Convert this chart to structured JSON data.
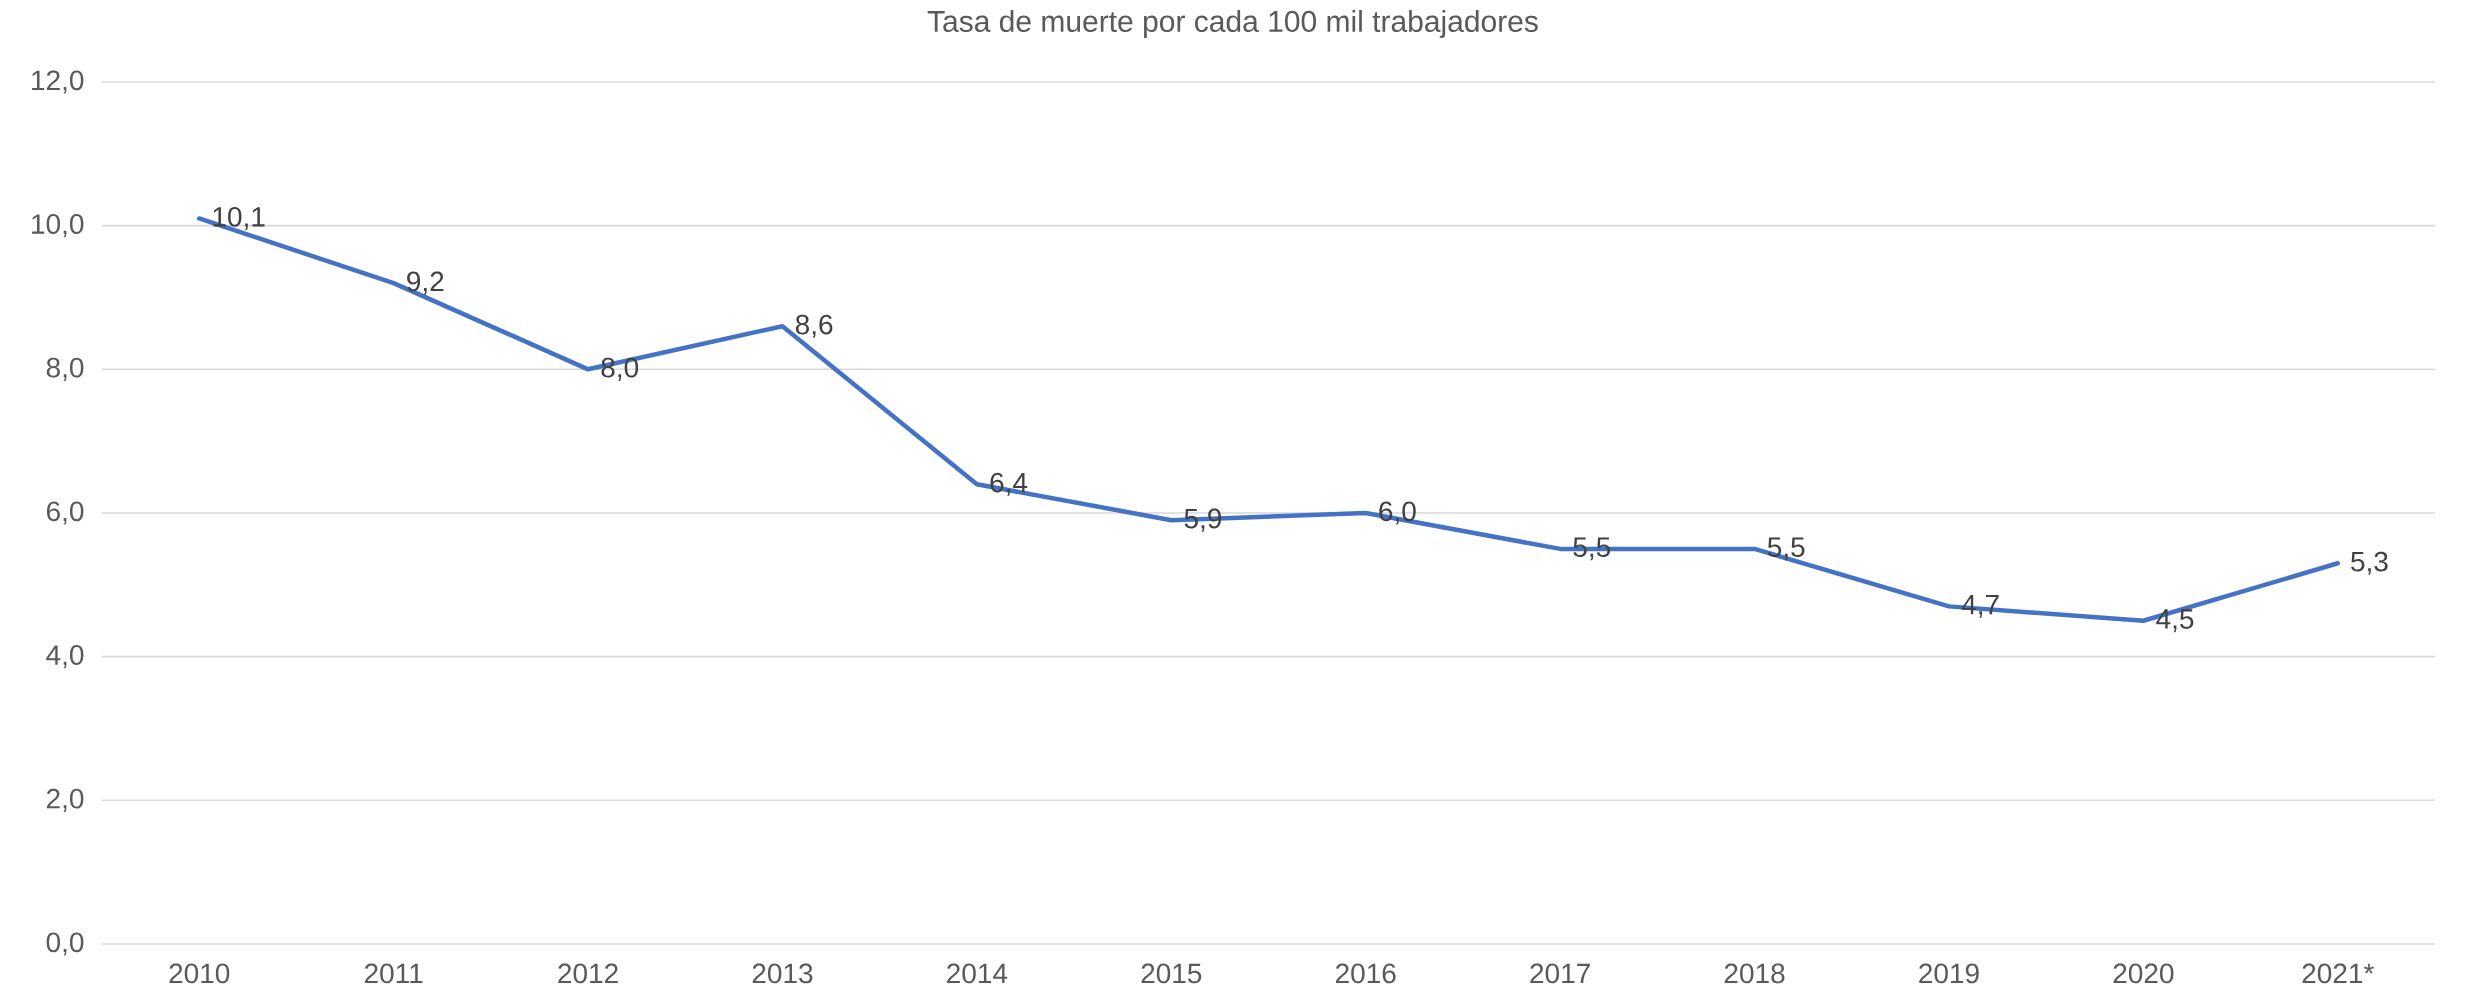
{
  "chart_data": {
    "type": "line",
    "title": "Tasa de muerte por cada 100 mil trabajadores",
    "categories": [
      "2010",
      "2011",
      "2012",
      "2013",
      "2014",
      "2015",
      "2016",
      "2017",
      "2018",
      "2019",
      "2020",
      "2021*"
    ],
    "values": [
      10.1,
      9.2,
      8.0,
      8.6,
      6.4,
      5.9,
      6.0,
      5.5,
      5.5,
      4.7,
      4.5,
      5.3
    ],
    "value_labels": [
      "10,1",
      "9,2",
      "8,0",
      "8,6",
      "6,4",
      "5,9",
      "6,0",
      "5,5",
      "5,5",
      "4,7",
      "4,5",
      "5,3"
    ],
    "color": "#4472c4",
    "ylim": [
      0,
      12
    ],
    "yticks": [
      {
        "value": 0,
        "label": "0,0"
      },
      {
        "value": 2,
        "label": "2,0"
      },
      {
        "value": 4,
        "label": "4,0"
      },
      {
        "value": 6,
        "label": "6,0"
      },
      {
        "value": 8,
        "label": "8,0"
      },
      {
        "value": 10,
        "label": "10,0"
      },
      {
        "value": 12,
        "label": "12,0"
      }
    ],
    "grid": "y",
    "marker": "none",
    "line_style": "solid"
  }
}
